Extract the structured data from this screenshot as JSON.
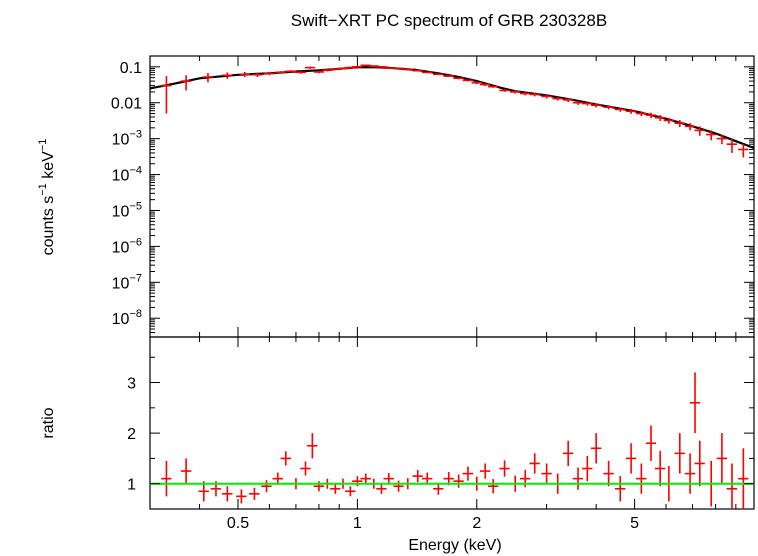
{
  "chart_data": [
    {
      "type": "scatter",
      "title": "Swift−XRT PC spectrum of GRB 230328B",
      "ylabel_main": "counts s",
      "ylabel_sup1": "−1",
      "ylabel_mid": " keV",
      "ylabel_sup2": "−1",
      "scale": "log-log",
      "xlim": [
        0.3,
        10
      ],
      "ylim": [
        3e-09,
        0.2
      ],
      "yticks": [
        {
          "value": 0.1,
          "base": "0.1",
          "exp": ""
        },
        {
          "value": 0.01,
          "base": "0.01",
          "exp": ""
        },
        {
          "value": 0.001,
          "base": "10",
          "exp": "−3"
        },
        {
          "value": 0.0001,
          "base": "10",
          "exp": "−4"
        },
        {
          "value": 1e-05,
          "base": "10",
          "exp": "−5"
        },
        {
          "value": 1e-06,
          "base": "10",
          "exp": "−6"
        },
        {
          "value": 1e-07,
          "base": "10",
          "exp": "−7"
        },
        {
          "value": 1e-08,
          "base": "10",
          "exp": "−8"
        }
      ],
      "data_color": "#ff0000",
      "model_color": "#000000",
      "data_points": [
        [
          0.33,
          0.03,
          0.025
        ],
        [
          0.37,
          0.04,
          0.018
        ],
        [
          0.42,
          0.052,
          0.015
        ],
        [
          0.47,
          0.058,
          0.012
        ],
        [
          0.52,
          0.062,
          0.01
        ],
        [
          0.56,
          0.06,
          0.008
        ],
        [
          0.6,
          0.065,
          0.007
        ],
        [
          0.64,
          0.07,
          0.006
        ],
        [
          0.68,
          0.075,
          0.006
        ],
        [
          0.72,
          0.07,
          0.006
        ],
        [
          0.76,
          0.095,
          0.007
        ],
        [
          0.8,
          0.072,
          0.006
        ],
        [
          0.84,
          0.08,
          0.006
        ],
        [
          0.88,
          0.085,
          0.005
        ],
        [
          0.92,
          0.09,
          0.005
        ],
        [
          0.96,
          0.095,
          0.005
        ],
        [
          1.0,
          0.1,
          0.005
        ],
        [
          1.05,
          0.11,
          0.005
        ],
        [
          1.1,
          0.105,
          0.005
        ],
        [
          1.15,
          0.1,
          0.005
        ],
        [
          1.2,
          0.092,
          0.004
        ],
        [
          1.27,
          0.09,
          0.004
        ],
        [
          1.34,
          0.085,
          0.004
        ],
        [
          1.42,
          0.078,
          0.004
        ],
        [
          1.5,
          0.07,
          0.004
        ],
        [
          1.6,
          0.062,
          0.003
        ],
        [
          1.7,
          0.055,
          0.003
        ],
        [
          1.8,
          0.048,
          0.003
        ],
        [
          1.9,
          0.042,
          0.003
        ],
        [
          2.0,
          0.036,
          0.003
        ],
        [
          2.1,
          0.032,
          0.003
        ],
        [
          2.2,
          0.028,
          0.002
        ],
        [
          2.35,
          0.022,
          0.002
        ],
        [
          2.5,
          0.02,
          0.002
        ],
        [
          2.65,
          0.018,
          0.002
        ],
        [
          2.8,
          0.017,
          0.002
        ],
        [
          3.0,
          0.015,
          0.002
        ],
        [
          3.2,
          0.013,
          0.0015
        ],
        [
          3.4,
          0.012,
          0.0015
        ],
        [
          3.6,
          0.01,
          0.0013
        ],
        [
          3.8,
          0.0095,
          0.0012
        ],
        [
          4.0,
          0.0085,
          0.0011
        ],
        [
          4.3,
          0.0075,
          0.001
        ],
        [
          4.6,
          0.0065,
          0.0009
        ],
        [
          4.9,
          0.0058,
          0.0009
        ],
        [
          5.2,
          0.005,
          0.0008
        ],
        [
          5.5,
          0.0045,
          0.0008
        ],
        [
          5.8,
          0.0038,
          0.0007
        ],
        [
          6.1,
          0.0032,
          0.0006
        ],
        [
          6.5,
          0.0027,
          0.0006
        ],
        [
          6.9,
          0.0022,
          0.0005
        ],
        [
          7.3,
          0.0017,
          0.0005
        ],
        [
          7.8,
          0.0013,
          0.0004
        ],
        [
          8.3,
          0.001,
          0.0003
        ],
        [
          8.8,
          0.0007,
          0.0003
        ],
        [
          9.4,
          0.0005,
          0.0002
        ]
      ],
      "model": [
        [
          0.3,
          0.025
        ],
        [
          0.35,
          0.035
        ],
        [
          0.4,
          0.048
        ],
        [
          0.5,
          0.06
        ],
        [
          0.6,
          0.066
        ],
        [
          0.7,
          0.074
        ],
        [
          0.8,
          0.08
        ],
        [
          0.9,
          0.088
        ],
        [
          1.0,
          0.097
        ],
        [
          1.1,
          0.098
        ],
        [
          1.2,
          0.094
        ],
        [
          1.4,
          0.082
        ],
        [
          1.6,
          0.066
        ],
        [
          1.8,
          0.052
        ],
        [
          2.0,
          0.04
        ],
        [
          2.3,
          0.026
        ],
        [
          2.5,
          0.021
        ],
        [
          3.0,
          0.016
        ],
        [
          3.5,
          0.012
        ],
        [
          4.0,
          0.009
        ],
        [
          5.0,
          0.0058
        ],
        [
          6.0,
          0.0036
        ],
        [
          7.0,
          0.0022
        ],
        [
          8.0,
          0.0014
        ],
        [
          9.0,
          0.00085
        ],
        [
          10.0,
          0.00055
        ]
      ]
    },
    {
      "type": "scatter",
      "ylabel": "ratio",
      "xlabel": "Energy (keV)",
      "scale": "log-x linear-y",
      "xlim": [
        0.3,
        10
      ],
      "ylim": [
        0.5,
        3.9
      ],
      "xticks": [
        {
          "value": 0.5,
          "label": "0.5"
        },
        {
          "value": 1,
          "label": "1"
        },
        {
          "value": 2,
          "label": "2"
        },
        {
          "value": 5,
          "label": "5"
        }
      ],
      "yticks": [
        {
          "value": 1,
          "label": "1"
        },
        {
          "value": 2,
          "label": "2"
        },
        {
          "value": 3,
          "label": "3"
        }
      ],
      "reference_line": {
        "value": 1,
        "color": "#00ee00"
      },
      "data_color": "#ff0000",
      "data_points": [
        [
          0.33,
          1.1,
          0.35
        ],
        [
          0.37,
          1.25,
          0.25
        ],
        [
          0.41,
          0.85,
          0.2
        ],
        [
          0.44,
          0.9,
          0.15
        ],
        [
          0.47,
          0.8,
          0.15
        ],
        [
          0.51,
          0.75,
          0.14
        ],
        [
          0.55,
          0.8,
          0.12
        ],
        [
          0.59,
          0.95,
          0.12
        ],
        [
          0.63,
          1.1,
          0.12
        ],
        [
          0.66,
          1.5,
          0.14
        ],
        [
          0.7,
          1.0,
          0.11
        ],
        [
          0.74,
          1.3,
          0.14
        ],
        [
          0.77,
          1.75,
          0.25
        ],
        [
          0.8,
          0.95,
          0.1
        ],
        [
          0.84,
          1.0,
          0.1
        ],
        [
          0.88,
          0.9,
          0.1
        ],
        [
          0.92,
          1.0,
          0.1
        ],
        [
          0.96,
          0.85,
          0.1
        ],
        [
          1.0,
          1.05,
          0.1
        ],
        [
          1.05,
          1.1,
          0.1
        ],
        [
          1.1,
          1.0,
          0.1
        ],
        [
          1.15,
          0.9,
          0.1
        ],
        [
          1.2,
          1.1,
          0.11
        ],
        [
          1.27,
          0.95,
          0.11
        ],
        [
          1.34,
          1.0,
          0.11
        ],
        [
          1.42,
          1.15,
          0.12
        ],
        [
          1.5,
          1.1,
          0.12
        ],
        [
          1.6,
          0.9,
          0.12
        ],
        [
          1.7,
          1.1,
          0.13
        ],
        [
          1.8,
          1.05,
          0.13
        ],
        [
          1.9,
          1.2,
          0.14
        ],
        [
          2.0,
          1.0,
          0.14
        ],
        [
          2.1,
          1.25,
          0.15
        ],
        [
          2.2,
          0.95,
          0.14
        ],
        [
          2.35,
          1.3,
          0.16
        ],
        [
          2.5,
          1.0,
          0.16
        ],
        [
          2.65,
          1.1,
          0.17
        ],
        [
          2.8,
          1.4,
          0.2
        ],
        [
          3.0,
          1.2,
          0.2
        ],
        [
          3.2,
          1.0,
          0.2
        ],
        [
          3.4,
          1.6,
          0.25
        ],
        [
          3.6,
          1.1,
          0.22
        ],
        [
          3.8,
          1.3,
          0.25
        ],
        [
          4.0,
          1.7,
          0.3
        ],
        [
          4.3,
          1.2,
          0.25
        ],
        [
          4.6,
          0.9,
          0.25
        ],
        [
          4.9,
          1.5,
          0.3
        ],
        [
          5.2,
          1.1,
          0.3
        ],
        [
          5.5,
          1.8,
          0.35
        ],
        [
          5.8,
          1.3,
          0.35
        ],
        [
          6.1,
          1.0,
          0.35
        ],
        [
          6.5,
          1.6,
          0.4
        ],
        [
          6.9,
          1.2,
          0.4
        ],
        [
          7.1,
          2.6,
          0.6
        ],
        [
          7.3,
          1.4,
          0.45
        ],
        [
          7.8,
          1.0,
          0.45
        ],
        [
          8.3,
          1.5,
          0.5
        ],
        [
          8.8,
          0.9,
          0.5
        ],
        [
          9.4,
          1.1,
          0.6
        ]
      ]
    }
  ]
}
